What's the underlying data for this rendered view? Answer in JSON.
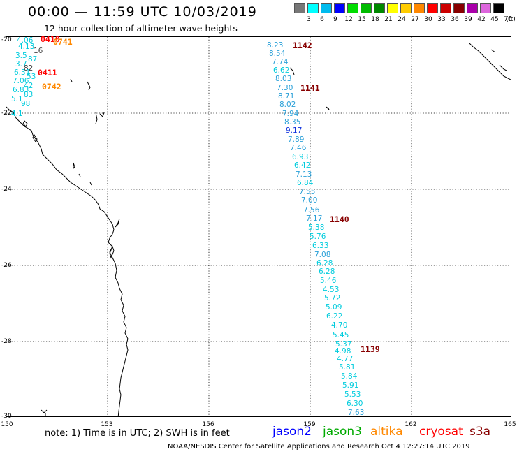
{
  "header": {
    "title": "00:00 — 11:59 UTC 10/03/2019",
    "subtitle": "12 hour collection of altimeter wave heights"
  },
  "colorbar": {
    "units": "(ft)",
    "bins": [
      {
        "label": "3",
        "color": "#777777"
      },
      {
        "label": "6",
        "color": "#00ffff"
      },
      {
        "label": "9",
        "color": "#00bbee"
      },
      {
        "label": "12",
        "color": "#0000ff"
      },
      {
        "label": "15",
        "color": "#00dd00"
      },
      {
        "label": "18",
        "color": "#00bb00"
      },
      {
        "label": "21",
        "color": "#008800"
      },
      {
        "label": "24",
        "color": "#ffff00"
      },
      {
        "label": "27",
        "color": "#ffcc00"
      },
      {
        "label": "30",
        "color": "#ff8800"
      },
      {
        "label": "33",
        "color": "#ff0000"
      },
      {
        "label": "36",
        "color": "#cc0000"
      },
      {
        "label": "39",
        "color": "#880000"
      },
      {
        "label": "42",
        "color": "#aa00aa"
      },
      {
        "label": "45",
        "color": "#dd66dd"
      },
      {
        "label": "70",
        "color": "#000000"
      }
    ]
  },
  "axes": {
    "lat_labels": [
      "-20",
      "-22",
      "-24",
      "-26",
      "-28",
      "-30"
    ],
    "lon_labels": [
      "150",
      "153",
      "156",
      "159",
      "162",
      "165"
    ]
  },
  "colors": {
    "light_cyan": "#00ccdd",
    "sky_blue": "#2aa0d8",
    "blue": "#1133dd",
    "dark_red": "#880000",
    "orange": "#ff8800",
    "red": "#ff0000",
    "gray": "#444444"
  },
  "observations": [
    {
      "text": "4.06",
      "color": "#00ccdd"
    },
    {
      "text": "4.13",
      "color": "#00ccdd"
    },
    {
      "text": "16",
      "color": "#444444"
    },
    {
      "text": "3.5",
      "color": "#00ccdd"
    },
    {
      "text": "87",
      "color": "#00ccdd"
    },
    {
      "text": "3.7",
      "color": "#00ccdd"
    },
    {
      "text": "82",
      "color": "#444444"
    },
    {
      "text": "6.31",
      "color": "#00ccdd"
    },
    {
      "text": "53",
      "color": "#00ccdd"
    },
    {
      "text": "7.06",
      "color": "#00ccdd"
    },
    {
      "text": "42",
      "color": "#00ccdd"
    },
    {
      "text": "6.83",
      "color": "#00ccdd"
    },
    {
      "text": "83",
      "color": "#00ccdd"
    },
    {
      "text": "5.1",
      "color": "#00ccdd"
    },
    {
      "text": "98",
      "color": "#00ccdd"
    },
    {
      "text": "4.1",
      "color": "#00ccdd"
    },
    {
      "text": "8.23",
      "color": "#2aa0d8"
    },
    {
      "text": "8.54",
      "color": "#2aa0d8"
    },
    {
      "text": "7.74",
      "color": "#2aa0d8"
    },
    {
      "text": "6.62",
      "color": "#00ccdd"
    },
    {
      "text": "8.03",
      "color": "#2aa0d8"
    },
    {
      "text": "7.30",
      "color": "#2aa0d8"
    },
    {
      "text": "8.71",
      "color": "#2aa0d8"
    },
    {
      "text": "8.02",
      "color": "#2aa0d8"
    },
    {
      "text": "7.94",
      "color": "#2aa0d8"
    },
    {
      "text": "8.35",
      "color": "#2aa0d8"
    },
    {
      "text": "9.17",
      "color": "#1133dd"
    },
    {
      "text": "7.89",
      "color": "#2aa0d8"
    },
    {
      "text": "7.46",
      "color": "#2aa0d8"
    },
    {
      "text": "6.93",
      "color": "#00ccdd"
    },
    {
      "text": "6.42",
      "color": "#00ccdd"
    },
    {
      "text": "7.13",
      "color": "#2aa0d8"
    },
    {
      "text": "6.84",
      "color": "#00ccdd"
    },
    {
      "text": "7.55",
      "color": "#2aa0d8"
    },
    {
      "text": "7.00",
      "color": "#2aa0d8"
    },
    {
      "text": "7.56",
      "color": "#2aa0d8"
    },
    {
      "text": "7.17",
      "color": "#2aa0d8"
    },
    {
      "text": "5.38",
      "color": "#00ccdd"
    },
    {
      "text": "5.76",
      "color": "#00ccdd"
    },
    {
      "text": "6.33",
      "color": "#00ccdd"
    },
    {
      "text": "7.08",
      "color": "#2aa0d8"
    },
    {
      "text": "6.28",
      "color": "#00ccdd"
    },
    {
      "text": "6.28",
      "color": "#00ccdd"
    },
    {
      "text": "5.46",
      "color": "#00ccdd"
    },
    {
      "text": "4.53",
      "color": "#00ccdd"
    },
    {
      "text": "5.72",
      "color": "#00ccdd"
    },
    {
      "text": "5.09",
      "color": "#00ccdd"
    },
    {
      "text": "6.22",
      "color": "#00ccdd"
    },
    {
      "text": "4.70",
      "color": "#00ccdd"
    },
    {
      "text": "5.45",
      "color": "#00ccdd"
    },
    {
      "text": "5.37",
      "color": "#00ccdd"
    },
    {
      "text": "4.98",
      "color": "#00ccdd"
    },
    {
      "text": "4.77",
      "color": "#00ccdd"
    },
    {
      "text": "5.81",
      "color": "#00ccdd"
    },
    {
      "text": "5.84",
      "color": "#00ccdd"
    },
    {
      "text": "5.91",
      "color": "#00ccdd"
    },
    {
      "text": "5.53",
      "color": "#00ccdd"
    },
    {
      "text": "6.30",
      "color": "#00ccdd"
    },
    {
      "text": "7.63",
      "color": "#2aa0d8"
    }
  ],
  "pass_labels": [
    {
      "text": "0410",
      "color": "#ff0000"
    },
    {
      "text": "0741",
      "color": "#ff8800"
    },
    {
      "text": "0411",
      "color": "#ff0000"
    },
    {
      "text": "0742",
      "color": "#ff8800"
    },
    {
      "text": "1142",
      "color": "#880000"
    },
    {
      "text": "1141",
      "color": "#880000"
    },
    {
      "text": "1140",
      "color": "#880000"
    },
    {
      "text": "1139",
      "color": "#880000"
    }
  ],
  "footer": {
    "note": "note: 1) Time is in UTC; 2) SWH is in feet",
    "satellites": [
      {
        "name": "jason2",
        "color": "#0000ff"
      },
      {
        "name": "jason3",
        "color": "#00aa00"
      },
      {
        "name": "altika",
        "color": "#ff8800"
      },
      {
        "name": "cryosat",
        "color": "#ff0000"
      },
      {
        "name": "s3a",
        "color": "#880000"
      }
    ],
    "credit": "NOAA/NESDIS Center for Satellite Applications and Research    Oct  4 12:27:14 UTC 2019"
  }
}
